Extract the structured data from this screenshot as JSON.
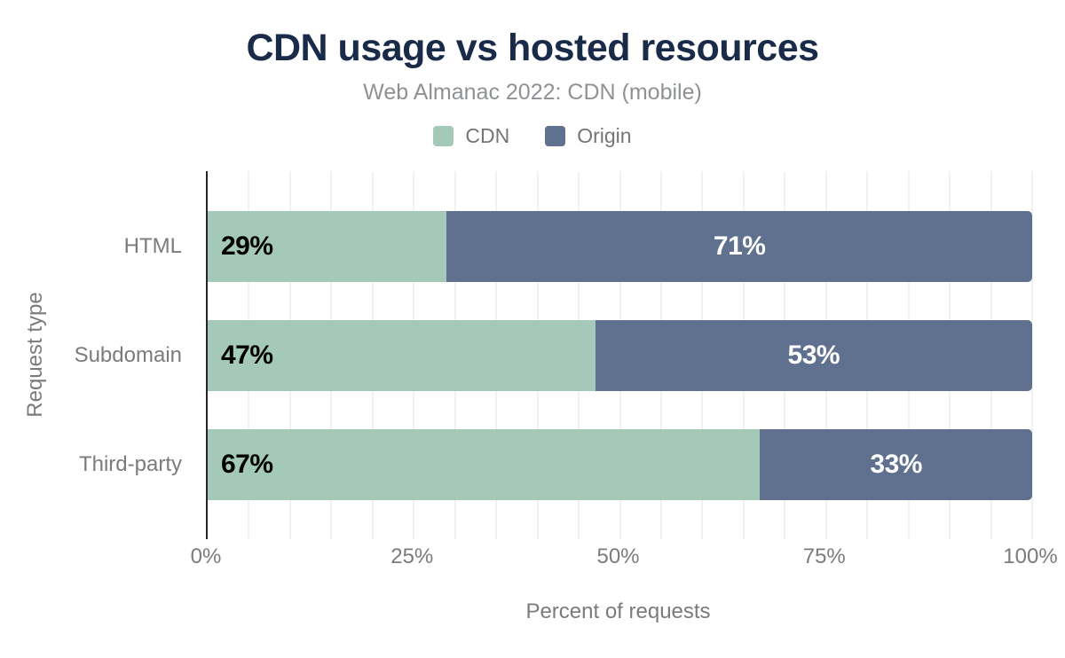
{
  "header": {
    "title": "CDN usage vs hosted resources",
    "subtitle": "Web Almanac 2022: CDN (mobile)"
  },
  "legend": {
    "items": [
      {
        "label": "CDN",
        "color": "#a5c9b8"
      },
      {
        "label": "Origin",
        "color": "#5f718e"
      }
    ]
  },
  "axes": {
    "x_title": "Percent of requests",
    "y_title": "Request type",
    "x_ticks": [
      {
        "label": "0%",
        "value": 0
      },
      {
        "label": "25%",
        "value": 25
      },
      {
        "label": "50%",
        "value": 50
      },
      {
        "label": "75%",
        "value": 75
      },
      {
        "label": "100%",
        "value": 100
      }
    ],
    "grid_step": 5
  },
  "colors": {
    "title_text": "#1a2b49",
    "subtitle_text": "#8f9295",
    "axis_text": "#7b7b7b",
    "grid_line": "#f1f1f1",
    "axis_line": "#262626",
    "cdn_fill": "#a5c9b8",
    "origin_fill": "#5f718e",
    "label_on_cdn": "#000000",
    "label_on_origin": "#ffffff"
  },
  "chart_data": {
    "type": "bar",
    "orientation": "horizontal",
    "stacked": true,
    "title": "CDN usage vs hosted resources",
    "subtitle": "Web Almanac 2022: CDN (mobile)",
    "xlabel": "Percent of requests",
    "ylabel": "Request type",
    "xlim": [
      0,
      100
    ],
    "grid": true,
    "legend_position": "top",
    "categories": [
      "HTML",
      "Subdomain",
      "Third-party"
    ],
    "series": [
      {
        "name": "CDN",
        "color": "#a5c9b8",
        "values": [
          29,
          47,
          67
        ],
        "data_labels": [
          "29%",
          "47%",
          "67%"
        ]
      },
      {
        "name": "Origin",
        "color": "#5f718e",
        "values": [
          71,
          53,
          33
        ],
        "data_labels": [
          "71%",
          "53%",
          "33%"
        ]
      }
    ]
  }
}
